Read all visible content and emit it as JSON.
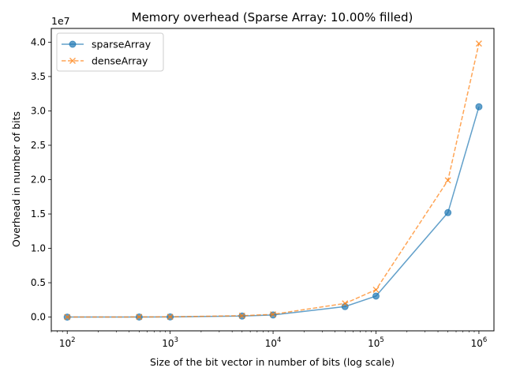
{
  "chart_data": {
    "type": "line",
    "title": "Memory overhead (Sparse Array: 10.00% filled)",
    "xlabel": "Size of the bit vector in number of bits (log scale)",
    "ylabel": "Overhead in number of bits",
    "x_scale": "log",
    "xlim": [
      70,
      1400000
    ],
    "ylim": [
      -2000000,
      42000000
    ],
    "y_offset_label": "1e7",
    "x_ticks": [
      {
        "value": 100,
        "base": "10",
        "exp": "2"
      },
      {
        "value": 1000,
        "base": "10",
        "exp": "3"
      },
      {
        "value": 10000,
        "base": "10",
        "exp": "4"
      },
      {
        "value": 100000,
        "base": "10",
        "exp": "5"
      },
      {
        "value": 1000000,
        "base": "10",
        "exp": "6"
      }
    ],
    "y_ticks": [
      {
        "value": 0,
        "label": "0.0"
      },
      {
        "value": 5000000,
        "label": "0.5"
      },
      {
        "value": 10000000,
        "label": "1.0"
      },
      {
        "value": 15000000,
        "label": "1.5"
      },
      {
        "value": 20000000,
        "label": "2.0"
      },
      {
        "value": 25000000,
        "label": "2.5"
      },
      {
        "value": 30000000,
        "label": "3.0"
      },
      {
        "value": 35000000,
        "label": "3.5"
      },
      {
        "value": 40000000,
        "label": "4.0"
      }
    ],
    "x": [
      100,
      500,
      1000,
      5000,
      10000,
      50000,
      100000,
      500000,
      1000000
    ],
    "series": [
      {
        "name": "sparseArray",
        "color": "#1f77b4",
        "linestyle": "solid",
        "marker": "circle",
        "values": [
          3000,
          15000,
          31000,
          153000,
          306000,
          1530000,
          3060000,
          15200000,
          30600000
        ]
      },
      {
        "name": "denseArray",
        "color": "#ff7f0e",
        "linestyle": "dashed",
        "marker": "x",
        "values": [
          4000,
          20000,
          40000,
          200000,
          400000,
          1990000,
          3980000,
          19900000,
          39800000
        ]
      }
    ],
    "legend_position": "top-left",
    "grid": false
  }
}
